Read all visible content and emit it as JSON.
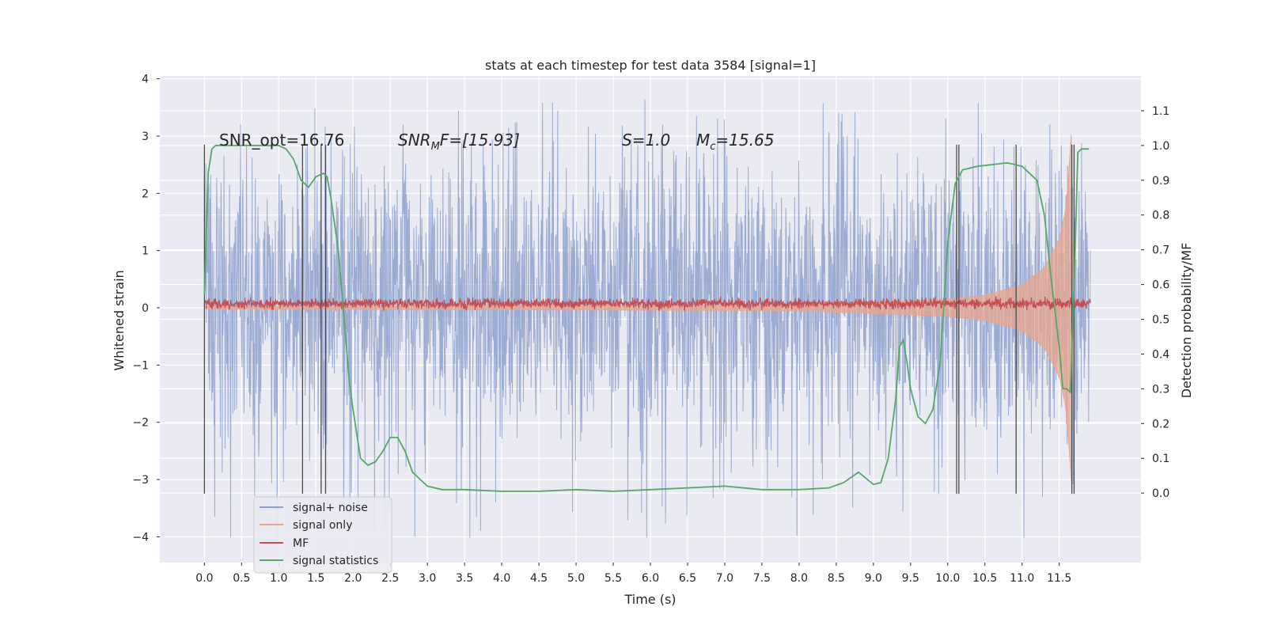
{
  "chart_data": {
    "type": "line",
    "title": "stats at each timestep for test data 3584 [signal=1]",
    "xlabel": "Time (s)",
    "ylabel": "Whitened strain",
    "y2label": "Detection probability/MF",
    "xlim": [
      -0.6,
      12.6
    ],
    "ylim": [
      -4.45,
      4.05
    ],
    "y2lim": [
      -0.2,
      1.2
    ],
    "x_ticks": [
      0.0,
      0.5,
      1.0,
      1.5,
      2.0,
      2.5,
      3.0,
      3.5,
      4.0,
      4.5,
      5.0,
      5.5,
      6.0,
      6.5,
      7.0,
      7.5,
      8.0,
      8.5,
      9.0,
      9.5,
      10.0,
      10.5,
      11.0,
      11.5
    ],
    "x_tick_labels": [
      "0.0",
      "0.5",
      "1.0",
      "1.5",
      "2.0",
      "2.5",
      "3.0",
      "3.5",
      "4.0",
      "4.5",
      "5.0",
      "5.5",
      "6.0",
      "6.5",
      "7.0",
      "7.5",
      "8.0",
      "8.5",
      "9.0",
      "9.5",
      "10.0",
      "10.5",
      "11.0",
      "11.5"
    ],
    "y_ticks": [
      -4,
      -3,
      -2,
      -1,
      0,
      1,
      2,
      3,
      4
    ],
    "y_tick_labels": [
      "−4",
      "−3",
      "−2",
      "−1",
      "0",
      "1",
      "2",
      "3",
      "4"
    ],
    "y2_ticks": [
      0.0,
      0.1,
      0.2,
      0.3,
      0.4,
      0.5,
      0.6,
      0.7,
      0.8,
      0.9,
      1.0,
      1.1
    ],
    "y2_tick_labels": [
      "0.0",
      "0.1",
      "0.2",
      "0.3",
      "0.4",
      "0.5",
      "0.6",
      "0.7",
      "0.8",
      "0.9",
      "1.0",
      "1.1"
    ],
    "grid": true,
    "legend_position": "lower-left",
    "series": [
      {
        "name": "signal+ noise",
        "color": "#8da0cb",
        "kind": "noise_band",
        "x_range": [
          0.0,
          11.92
        ],
        "typical_range": [
          -2.0,
          2.3
        ],
        "extreme_range": [
          -4.1,
          3.65
        ]
      },
      {
        "name": "signal only",
        "color": "#e8a58c",
        "kind": "chirp_envelope",
        "x": [
          0.0,
          8.0,
          9.0,
          10.0,
          10.5,
          11.0,
          11.3,
          11.5,
          11.6,
          11.67,
          11.7
        ],
        "amplitude": [
          0.02,
          0.05,
          0.1,
          0.15,
          0.22,
          0.4,
          0.7,
          1.2,
          1.8,
          3.2,
          0.0
        ]
      },
      {
        "name": "MF",
        "color": "#c44e52",
        "kind": "noise_band",
        "x_range": [
          0.0,
          11.92
        ],
        "typical_range": [
          -0.02,
          0.17
        ],
        "extreme_range": [
          -0.05,
          0.25
        ]
      },
      {
        "name": "signal statistics",
        "color": "#55a868",
        "axis": "y2",
        "x": [
          0.0,
          0.05,
          0.1,
          0.15,
          0.3,
          0.5,
          0.8,
          1.0,
          1.1,
          1.2,
          1.3,
          1.4,
          1.5,
          1.6,
          1.65,
          1.7,
          1.8,
          1.9,
          1.95,
          2.0,
          2.1,
          2.2,
          2.3,
          2.4,
          2.5,
          2.6,
          2.7,
          2.8,
          2.9,
          3.0,
          3.2,
          3.5,
          4.0,
          4.5,
          5.0,
          5.5,
          6.0,
          6.5,
          7.0,
          7.5,
          8.0,
          8.4,
          8.6,
          8.8,
          9.0,
          9.1,
          9.2,
          9.3,
          9.35,
          9.4,
          9.45,
          9.5,
          9.6,
          9.7,
          9.8,
          9.9,
          10.0,
          10.1,
          10.2,
          10.4,
          10.6,
          10.8,
          11.0,
          11.2,
          11.3,
          11.4,
          11.5,
          11.55,
          11.6,
          11.65,
          11.7,
          11.75,
          11.8,
          11.9
        ],
        "y": [
          0.57,
          0.92,
          0.99,
          1.0,
          1.0,
          1.0,
          1.0,
          1.0,
          0.99,
          0.96,
          0.9,
          0.88,
          0.91,
          0.92,
          0.91,
          0.85,
          0.7,
          0.45,
          0.32,
          0.24,
          0.1,
          0.08,
          0.09,
          0.12,
          0.16,
          0.16,
          0.12,
          0.06,
          0.04,
          0.02,
          0.01,
          0.01,
          0.005,
          0.005,
          0.01,
          0.005,
          0.01,
          0.015,
          0.02,
          0.01,
          0.01,
          0.015,
          0.03,
          0.06,
          0.025,
          0.03,
          0.1,
          0.27,
          0.42,
          0.44,
          0.38,
          0.3,
          0.22,
          0.2,
          0.24,
          0.38,
          0.72,
          0.89,
          0.93,
          0.94,
          0.945,
          0.95,
          0.94,
          0.9,
          0.8,
          0.6,
          0.42,
          0.3,
          0.3,
          0.29,
          0.6,
          0.98,
          0.99,
          0.99
        ]
      },
      {
        "name": "",
        "color": "#4c4c4c",
        "kind": "vlines",
        "x": [
          0.0,
          1.32,
          1.57,
          1.63,
          10.12,
          10.15,
          10.92,
          11.67,
          11.7
        ],
        "ymin": -3.25,
        "ymax": 2.85
      }
    ],
    "annotations": [
      {
        "text": "SNR_opt=16.76",
        "x": 0.22,
        "y": 2.95
      },
      {
        "text": "SNR_{M}F=[15.93]",
        "x": 2.6,
        "y": 2.95
      },
      {
        "text": "S=1.0",
        "x": 5.6,
        "y": 2.95
      },
      {
        "text": "M_{c}=15.65",
        "x": 6.6,
        "y": 2.95
      }
    ]
  },
  "legend": {
    "items": [
      {
        "label": "signal+ noise",
        "color": "#8da0cb"
      },
      {
        "label": "signal only",
        "color": "#e8a58c"
      },
      {
        "label": "MF",
        "color": "#c44e52"
      },
      {
        "label": "signal statistics",
        "color": "#55a868"
      }
    ]
  },
  "annotations": {
    "snr_opt": "SNR_opt=16.76",
    "snr_mf_base": "SNR",
    "snr_mf_sub": "M",
    "snr_mf_rest": "F=[15.93]",
    "s": "S=1.0",
    "mc_base": "M",
    "mc_sub": "c",
    "mc_rest": "=15.65"
  }
}
